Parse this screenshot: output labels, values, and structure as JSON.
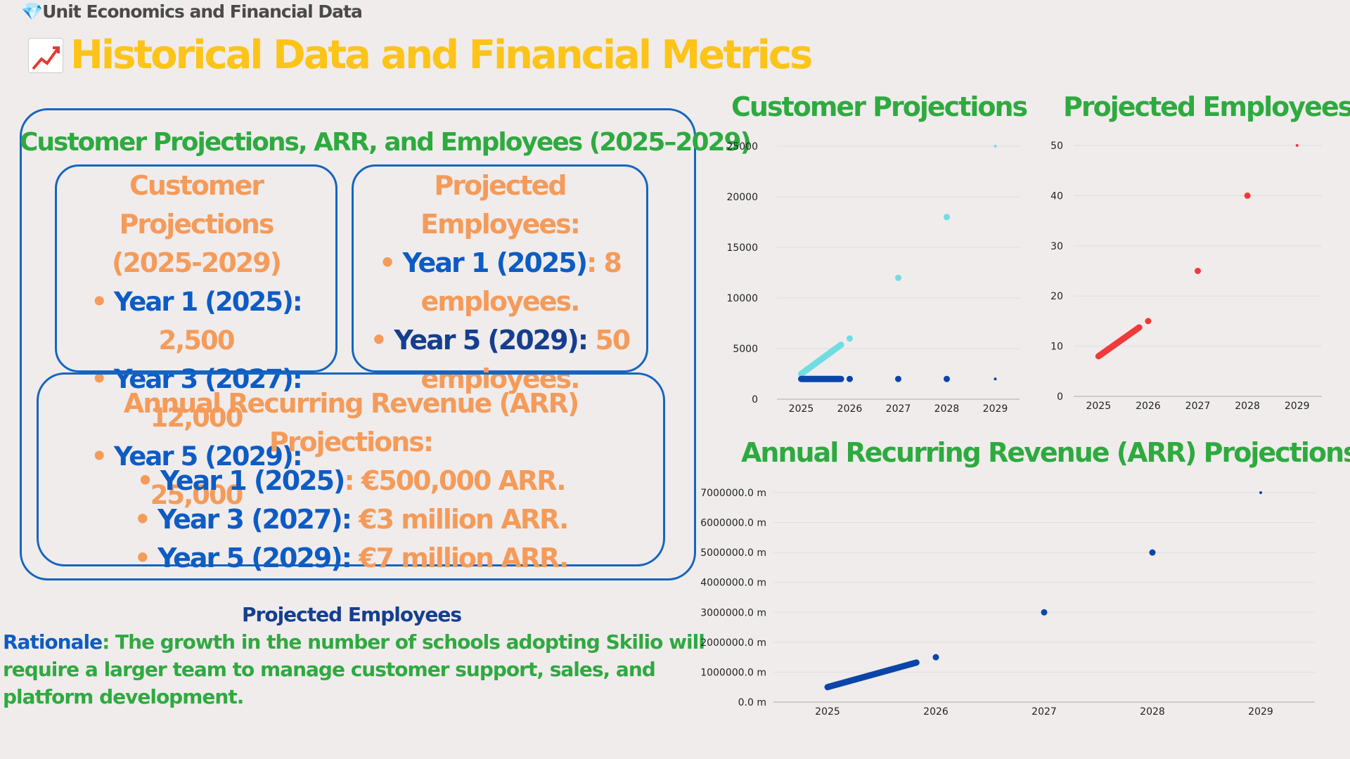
{
  "header": {
    "breadcrumb": "💎Unit Economics and Financial Data",
    "title": "Historical Data and Financial Metrics"
  },
  "summary": {
    "heading": "Customer Projections, ARR, and Employees (2025–2029)",
    "customers": {
      "title_line1": "Customer Projections",
      "title_line2": "(2025-2029)",
      "items": [
        {
          "bullet": "• ",
          "label": "Year 1 (2025): ",
          "value": "2,500"
        },
        {
          "bullet": "• ",
          "label": "Year 3 (2027): ",
          "value": "12,000"
        },
        {
          "bullet": "• ",
          "label": "Year 5 (2029): ",
          "value": "25,000"
        }
      ]
    },
    "employees": {
      "title": "Projected Employees:",
      "item1": {
        "bullet": "• ",
        "label": "Year 1 (2025)",
        "value1": ": 8",
        "value2": "employees."
      },
      "item2": {
        "bullet": "• ",
        "label": "Year 5 (2029): ",
        "value1": "50",
        "value2": "employees."
      }
    },
    "arr": {
      "title": "Annual Recurring Revenue (ARR) Projections:",
      "items": [
        {
          "bullet": "• ",
          "label": "Year 1 (2025)",
          "value": ": €500,000 ARR."
        },
        {
          "bullet": "• ",
          "label": "Year 3 (2027): ",
          "value": "€3 million ARR."
        },
        {
          "bullet": "• ",
          "label": "Year 5 (2029): ",
          "value": "€7 million ARR."
        }
      ]
    }
  },
  "note": {
    "title": "Projected Employees",
    "label": "Rationale",
    "text": ": The growth in the number of schools adopting Skilio will require a larger team to manage customer support, sales, and platform development."
  },
  "chart_data": [
    {
      "type": "line",
      "title": "Customer Projections",
      "x": [
        "2025",
        "2026",
        "2027",
        "2028",
        "2029"
      ],
      "yticks": [
        "0",
        "5000",
        "10000",
        "15000",
        "20000",
        "25000"
      ],
      "ylim": [
        0,
        25000
      ],
      "grid": true,
      "series": [
        {
          "values": [
            2500,
            6000,
            12000,
            18000,
            25000
          ],
          "color": "#6fdde2"
        },
        {
          "values": [
            2000,
            2000,
            2000,
            2000,
            2000
          ],
          "color": "#0b45a8"
        }
      ]
    },
    {
      "type": "line",
      "title": "Projected Employees",
      "x": [
        "2025",
        "2026",
        "2027",
        "2028",
        "2029"
      ],
      "yticks": [
        "0",
        "10",
        "20",
        "30",
        "40",
        "50"
      ],
      "ylim": [
        0,
        50
      ],
      "grid": true,
      "series": [
        {
          "values": [
            8,
            15,
            25,
            40,
            50
          ],
          "color": "#f03a3a"
        }
      ]
    },
    {
      "type": "line",
      "title": "Annual Recurring Revenue (ARR) Projections",
      "x": [
        "2025",
        "2026",
        "2027",
        "2028",
        "2029"
      ],
      "yticks": [
        "0.0 m",
        "1000000.0 m",
        "2000000.0 m",
        "3000000.0 m",
        "4000000.0 m",
        "5000000.0 m",
        "6000000.0 m",
        "7000000.0 m"
      ],
      "ylim": [
        0,
        7000000
      ],
      "grid": true,
      "series": [
        {
          "values": [
            500000,
            1500000,
            3000000,
            5000000,
            7000000
          ],
          "color": "#0b45a8"
        }
      ]
    }
  ]
}
